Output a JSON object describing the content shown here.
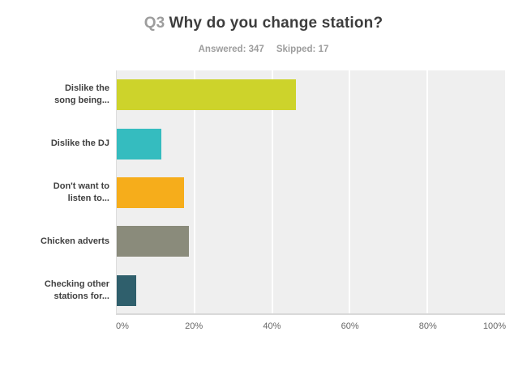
{
  "title": {
    "prefix": "Q3",
    "text": "Why do you change station?"
  },
  "stats": {
    "answered": "Answered: 347",
    "skipped": "Skipped: 17"
  },
  "axis": {
    "ticks": [
      "0%",
      "20%",
      "40%",
      "60%",
      "80%",
      "100%"
    ]
  },
  "colors": {
    "plot_background": "#efefef",
    "gridline": "#ffffff",
    "axis_border": "#d9d9d9",
    "title_prefix": "#9d9d9d",
    "title_text": "#3d3d3d",
    "stats_text": "#9d9d9d",
    "category_label_text": "#404040",
    "tick_text": "#666666"
  },
  "chart_data": {
    "type": "bar",
    "orientation": "horizontal",
    "title": "Q3 Why do you change station?",
    "answered": 347,
    "skipped": 17,
    "xlim": [
      0,
      100
    ],
    "x_ticks": [
      "0%",
      "20%",
      "40%",
      "60%",
      "80%",
      "100%"
    ],
    "grid": true,
    "legend": false,
    "categories": [
      "Dislike the song being...",
      "Dislike the DJ",
      "Don't want to listen to...",
      "Chicken adverts",
      "Checking other stations for..."
    ],
    "values": [
      46.1,
      11.5,
      17.3,
      18.6,
      5.1
    ],
    "bars": [
      {
        "label": "Dislike the\nsong being...",
        "value": 46.1,
        "color": "#cdd32b"
      },
      {
        "label": "Dislike the DJ",
        "value": 11.5,
        "color": "#35bcbf"
      },
      {
        "label": "Don't want to\nlisten to...",
        "value": 17.3,
        "color": "#f6ad1b"
      },
      {
        "label": "Chicken adverts",
        "value": 18.6,
        "color": "#8a8b7b"
      },
      {
        "label": "Checking other\nstations for...",
        "value": 5.1,
        "color": "#2f5f6c"
      }
    ]
  }
}
